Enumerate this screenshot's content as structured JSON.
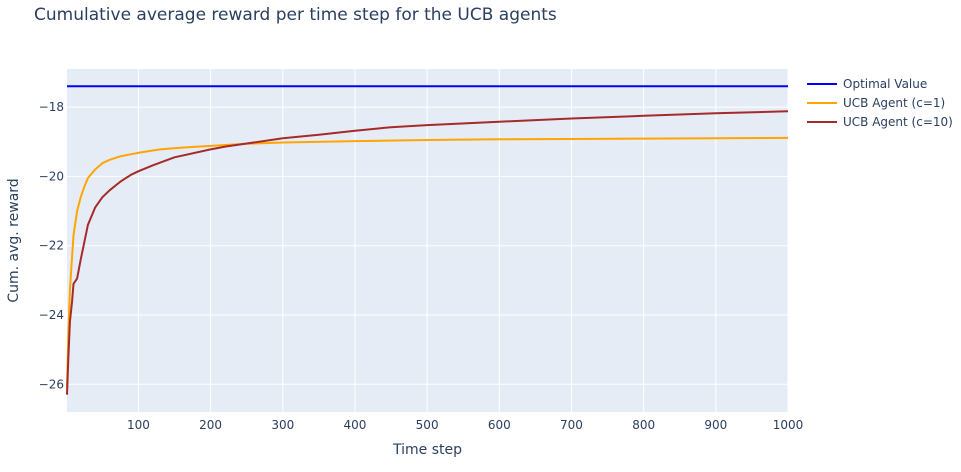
{
  "chart_data": {
    "type": "line",
    "title": "Cumulative average reward per time step for the UCB agents",
    "xlabel": "Time step",
    "ylabel": "Cum. avg. reward",
    "xlim": [
      1,
      1000
    ],
    "ylim": [
      -26.8,
      -16.9
    ],
    "x_ticks": [
      100,
      200,
      300,
      400,
      500,
      600,
      700,
      800,
      900,
      1000
    ],
    "y_ticks": [
      -26,
      -24,
      -22,
      -20,
      -18
    ],
    "grid": true,
    "legend_position": "top-right",
    "colors": {
      "plot_bg": "#e5ecf6",
      "grid": "#ffffff",
      "text": "#2a3f5f"
    },
    "series": [
      {
        "name": "Optimal Value",
        "color": "#0000ff",
        "x": [
          1,
          1000
        ],
        "y": [
          -17.4,
          -17.4
        ]
      },
      {
        "name": "UCB Agent (c=1)",
        "color": "#ffa500",
        "x": [
          1,
          3,
          5,
          8,
          10,
          15,
          20,
          25,
          30,
          40,
          50,
          60,
          75,
          100,
          130,
          160,
          200,
          250,
          300,
          400,
          500,
          600,
          700,
          800,
          900,
          1000
        ],
        "y": [
          -26.1,
          -24.5,
          -23.3,
          -22.3,
          -21.7,
          -21.0,
          -20.6,
          -20.3,
          -20.05,
          -19.8,
          -19.62,
          -19.52,
          -19.42,
          -19.32,
          -19.22,
          -19.17,
          -19.12,
          -19.06,
          -19.02,
          -18.98,
          -18.95,
          -18.93,
          -18.92,
          -18.91,
          -18.9,
          -18.89
        ]
      },
      {
        "name": "UCB Agent (c=10)",
        "color": "#a52a2a",
        "x": [
          1,
          3,
          5,
          8,
          10,
          15,
          20,
          30,
          40,
          50,
          60,
          75,
          90,
          100,
          120,
          150,
          200,
          220,
          250,
          300,
          350,
          400,
          450,
          500,
          600,
          700,
          800,
          900,
          1000
        ],
        "y": [
          -26.3,
          -25.2,
          -24.2,
          -23.6,
          -23.1,
          -22.95,
          -22.4,
          -21.4,
          -20.9,
          -20.6,
          -20.4,
          -20.15,
          -19.95,
          -19.85,
          -19.68,
          -19.45,
          -19.22,
          -19.14,
          -19.05,
          -18.9,
          -18.8,
          -18.68,
          -18.58,
          -18.52,
          -18.42,
          -18.33,
          -18.25,
          -18.18,
          -18.12
        ]
      }
    ]
  }
}
